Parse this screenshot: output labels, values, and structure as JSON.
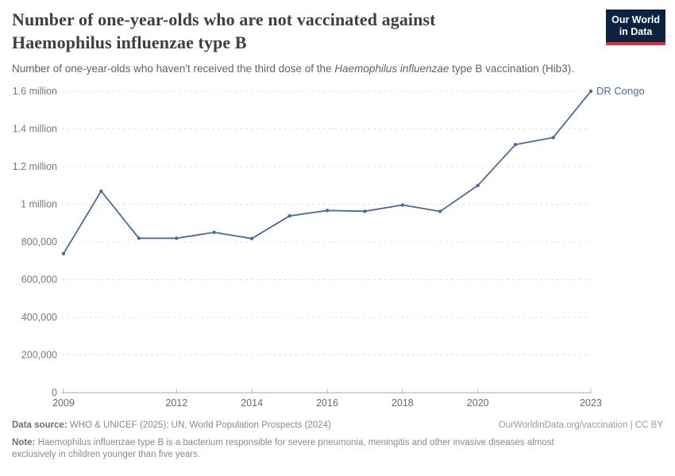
{
  "header": {
    "title_line1": "Number of one-year-olds who are not vaccinated against",
    "title_line2": "Haemophilus influenzae type B",
    "subtitle_prefix": "Number of one-year-olds who haven't received the third dose of the ",
    "subtitle_italic": "Haemophilus influenzae",
    "subtitle_suffix": " type B vaccination (Hib3).",
    "logo": {
      "line1": "Our World",
      "line2": "in Data"
    }
  },
  "chart_data": {
    "type": "line",
    "title": "Number of one-year-olds who are not vaccinated against Haemophilus influenzae type B",
    "subtitle": "Number of one-year-olds who haven't received the third dose of the Haemophilus influenzae type B vaccination (Hib3).",
    "xlabel": "",
    "ylabel": "",
    "xlim": [
      2009,
      2023
    ],
    "ylim": [
      0,
      1600000
    ],
    "grid": "horizontal-dashed",
    "legend_position": "end-of-line-label",
    "x": [
      2009,
      2010,
      2011,
      2012,
      2013,
      2014,
      2015,
      2016,
      2017,
      2018,
      2019,
      2020,
      2021,
      2022,
      2023
    ],
    "series": [
      {
        "name": "DR Congo",
        "color": "#4c6a9c",
        "values": [
          738000,
          1070000,
          820000,
          820000,
          851000,
          818000,
          938000,
          967000,
          963000,
          996000,
          962000,
          1100000,
          1317000,
          1354000,
          1600000
        ]
      }
    ],
    "x_ticks": [
      2009,
      2012,
      2014,
      2016,
      2018,
      2020,
      2023
    ],
    "y_ticks": [
      {
        "value": 0,
        "label": "0"
      },
      {
        "value": 200000,
        "label": "200,000"
      },
      {
        "value": 400000,
        "label": "400,000"
      },
      {
        "value": 600000,
        "label": "600,000"
      },
      {
        "value": 800000,
        "label": "800,000"
      },
      {
        "value": 1000000,
        "label": "1 million"
      },
      {
        "value": 1200000,
        "label": "1.2 million"
      },
      {
        "value": 1400000,
        "label": "1.4 million"
      },
      {
        "value": 1600000,
        "label": "1.6 million"
      }
    ],
    "end_label": "DR Congo"
  },
  "footer": {
    "data_source_label": "Data source:",
    "data_source_text": " WHO & UNICEF (2025); UN, World Population Prospects (2024)",
    "citation": "OurWorldinData.org/vaccination | CC BY",
    "note_label": "Note:",
    "note_text": " Haemophilus influenzae type B is a bacterium responsible for severe pneumonia, meningitis and other invasive diseases almost exclusively in children younger than five years."
  },
  "colors": {
    "line": "#4c6a9c",
    "end_label": "#4c6a9c",
    "grid": "#e0e0e0",
    "axis": "#a8a8a8",
    "tick_mark": "#b5b5b5",
    "y_tick_text": "#76797c",
    "x_tick_text": "#68696b",
    "title_text": "#3a4045",
    "subtitle_text": "#5f6368",
    "logo_bg": "#0b2341",
    "logo_accent": "#dc2c33",
    "footer_text": "#8a8a8a"
  }
}
